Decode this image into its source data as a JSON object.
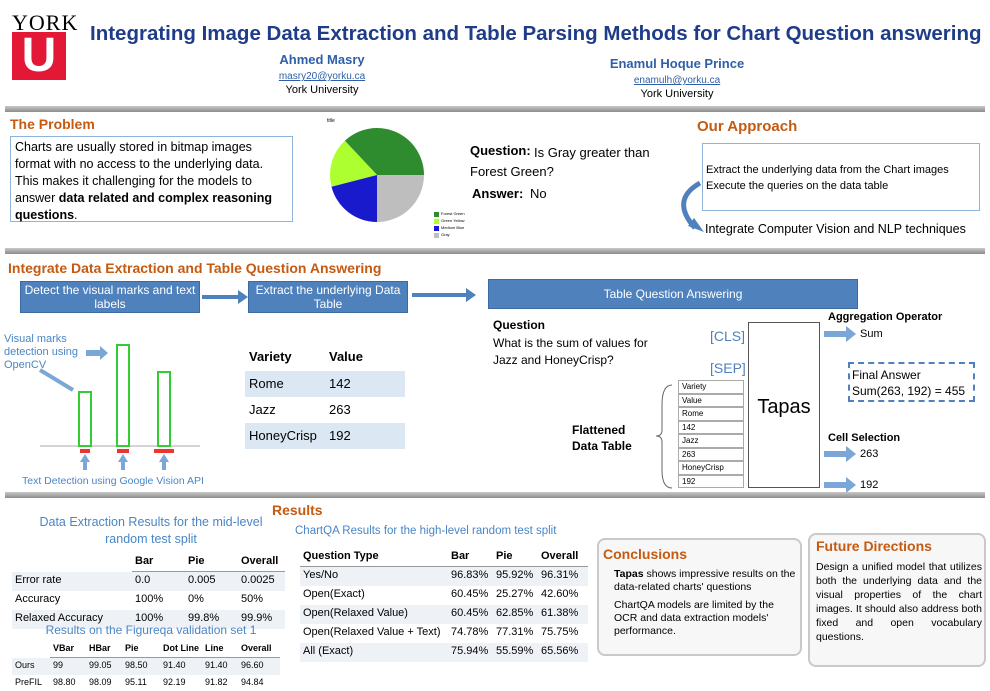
{
  "header": {
    "logo_top": "YORK",
    "logo_letter": "U",
    "title": "Integrating Image Data Extraction and Table Parsing Methods for Chart Question answering",
    "authors": [
      {
        "name": "Ahmed Masry",
        "email": "masry20@yorku.ca",
        "affiliation": "York University"
      },
      {
        "name": "Enamul Hoque Prince",
        "email": "enamulh@yorku.ca",
        "affiliation": "York University"
      }
    ]
  },
  "problem": {
    "heading": "The Problem",
    "text": "Charts are usually stored in bitmap images format with no access to the underlying data. This makes it challenging for the models to answer ",
    "bold": "data related and complex reasoning questions",
    "end": "."
  },
  "pie": {
    "title": "title",
    "labels": [
      "Forest Green",
      "Green Yellow",
      "Medium Blue",
      "Gray"
    ],
    "colors": [
      "#2e8b2e",
      "#adff2f",
      "#1a1acd",
      "#bebebe"
    ],
    "values": [
      37,
      17,
      21,
      25
    ]
  },
  "example": {
    "question_label": "Question:",
    "question": "Is Gray greater than Forest Green?",
    "answer_label": "Answer:",
    "answer": "No"
  },
  "approach": {
    "heading": "Our Approach",
    "bullets": [
      "Extract the underlying data from the Chart images",
      "Execute the queries on the data table"
    ],
    "result": "Integrate Computer Vision and NLP techniques"
  },
  "pipeline": {
    "heading": "Integrate Data Extraction and Table Question Answering",
    "steps": [
      "Detect the visual marks and text labels",
      "Extract the underlying Data Table",
      "Table Question Answering"
    ],
    "marks_label": "Visual marks detection using OpenCV",
    "text_label": "Text Detection using Google Vision API",
    "table": {
      "header": [
        "Variety",
        "Value"
      ],
      "rows": [
        [
          "Rome",
          "142"
        ],
        [
          "Jazz",
          "263"
        ],
        [
          "HoneyCrisp",
          "192"
        ]
      ]
    },
    "question_label": "Question",
    "question": "What is the sum of values for Jazz and HoneyCrisp?",
    "cls": "[CLS]",
    "sep": "[SEP]",
    "flattened_label": "Flattened Data Table",
    "flattened": [
      "Variety",
      "Value",
      "Rome",
      "142",
      "Jazz",
      "263",
      "HoneyCrisp",
      "192"
    ],
    "model": "Tapas",
    "agg_label": "Aggregation Operator",
    "agg": "Sum",
    "final_label": "Final Answer",
    "final": "Sum(263, 192) = 455",
    "cell_label": "Cell Selection",
    "cells": [
      "263",
      "192"
    ]
  },
  "results": {
    "heading": "Results",
    "extraction": {
      "caption": "Data Extraction Results for the mid-level random test split",
      "header": [
        "Bar",
        "Pie",
        "Overall"
      ],
      "rows": [
        [
          "Error rate",
          "0.0",
          "0.005",
          "0.0025"
        ],
        [
          "Accuracy",
          "100%",
          "0%",
          "50%"
        ],
        [
          "Relaxed Accuracy",
          "100%",
          "99.8%",
          "99.9%"
        ]
      ]
    },
    "figureqa": {
      "caption": "Results on the Figureqa validation set 1",
      "header": [
        "VBar",
        "HBar",
        "Pie",
        "Dot Line",
        "Line",
        "Overall"
      ],
      "rows": [
        [
          "Ours",
          "99",
          "99.05",
          "98.50",
          "91.40",
          "91.40",
          "96.60"
        ],
        [
          "PreFIL",
          "98.80",
          "98.09",
          "95.11",
          "92.19",
          "91.82",
          "94.84"
        ]
      ]
    },
    "chartqa": {
      "caption": "ChartQA Results for the high-level random test split",
      "header": [
        "Question Type",
        "Bar",
        "Pie",
        "Overall"
      ],
      "rows": [
        [
          "Yes/No",
          "96.83%",
          "95.92%",
          "96.31%"
        ],
        [
          "Open(Exact)",
          "60.45%",
          "25.27%",
          "42.60%"
        ],
        [
          "Open(Relaxed Value)",
          "60.45%",
          "62.85%",
          "61.38%"
        ],
        [
          "Open(Relaxed Value + Text)",
          "74.78%",
          "77.31%",
          "75.75%"
        ],
        [
          "All (Exact)",
          "75.94%",
          "55.59%",
          "65.56%"
        ]
      ]
    }
  },
  "conclusions": {
    "heading": "Conclusions",
    "bullets": [
      {
        "bold": "Tapas",
        "text": " shows impressive results on the data-related charts' questions"
      },
      {
        "text": "ChartQA models are limited by the OCR and data extraction models' performance."
      }
    ]
  },
  "future": {
    "heading": "Future Directions",
    "text": "Design a unified model that utilizes both the underlying data and the visual properties of the chart images. It should also address both fixed and open vocabulary questions."
  }
}
